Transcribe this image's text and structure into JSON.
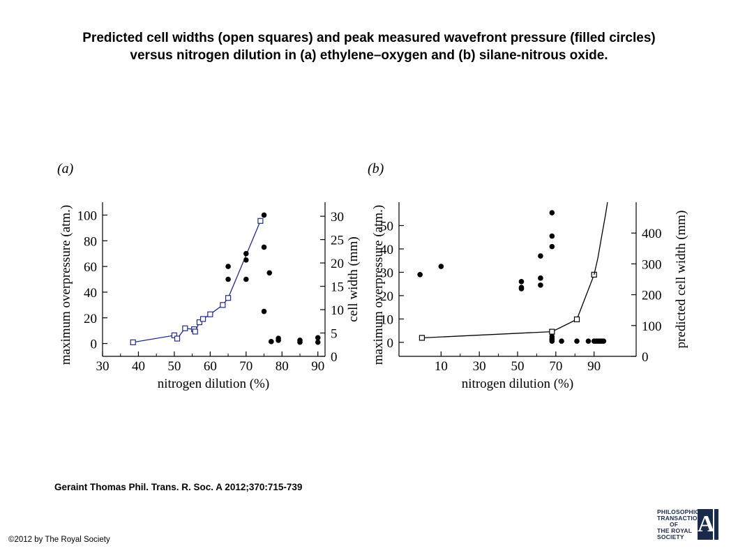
{
  "title_line1": "Predicted cell widths (open squares) and peak measured wavefront pressure (filled circles)",
  "title_line2": "versus nitrogen dilution in (a) ethylene–oxygen and (b) silane-nitrous oxide.",
  "citation": "Geraint Thomas Phil. Trans. R. Soc. A 2012;370:715-739",
  "copyright": "©2012 by The Royal Society",
  "logo": {
    "line1": "PHILOSOPHICAL",
    "line2": "TRANSACTIONS",
    "line3": "OF",
    "line4": "THE ROYAL",
    "line5": "SOCIETY",
    "letter": "A"
  },
  "chart_data": [
    {
      "type": "scatter",
      "panel_label": "(a)",
      "xlabel": "nitrogen dilution (%)",
      "ylabel_left": "maximum overpressure (atm.)",
      "ylabel_right": "cell width (mm)",
      "xlim": [
        30,
        92
      ],
      "ylim_left": [
        -10,
        110
      ],
      "ylim_right": [
        0,
        33
      ],
      "x_ticks": [
        30,
        40,
        50,
        60,
        70,
        80,
        90
      ],
      "y_left_ticks": [
        0,
        20,
        40,
        60,
        80,
        100
      ],
      "y_right_ticks": [
        0,
        5,
        10,
        15,
        20,
        25,
        30
      ],
      "line_color": "#1f2a8c",
      "series": [
        {
          "name": "predicted cell width (open squares)",
          "axis": "right",
          "marker": "open-square",
          "connected": true,
          "x": [
            38.5,
            50,
            50.8,
            53,
            55.5,
            55.8,
            57,
            58,
            60,
            63.5,
            65,
            74
          ],
          "y": [
            3,
            4.5,
            3.8,
            6,
            5.8,
            5.3,
            7.3,
            8,
            9,
            11,
            12.5,
            29
          ]
        },
        {
          "name": "peak measured wavefront pressure (filled circles)",
          "axis": "left",
          "marker": "filled-circle",
          "connected": false,
          "x": [
            65,
            65,
            70,
            70,
            70,
            75,
            75,
            75,
            76.5,
            77,
            79,
            79,
            85,
            85,
            90,
            90
          ],
          "y": [
            60,
            50,
            70,
            65,
            50,
            100,
            75,
            25,
            55,
            1.5,
            4,
            2.5,
            2.5,
            1,
            4.5,
            1
          ]
        }
      ]
    },
    {
      "type": "scatter",
      "panel_label": "(b)",
      "xlabel": "nitrogen dilution (%)",
      "ylabel_left": "maximum overpressure (atm.)",
      "ylabel_right": "predicted cell width (mm)",
      "xlim": [
        -12,
        112
      ],
      "ylim_left": [
        -6,
        60
      ],
      "ylim_right": [
        0,
        500
      ],
      "x_ticks": [
        10,
        30,
        50,
        70,
        90
      ],
      "y_left_ticks": [
        0,
        10,
        20,
        30,
        40,
        50
      ],
      "y_right_ticks": [
        0,
        100,
        200,
        300,
        400
      ],
      "line_color": "#000000",
      "series": [
        {
          "name": "predicted cell width (open squares)",
          "axis": "right",
          "marker": "open-square",
          "connected": true,
          "x": [
            0,
            68,
            81,
            90
          ],
          "y": [
            60,
            80,
            120,
            265
          ]
        },
        {
          "name": "predicted cell width (asymptote)",
          "axis": "right",
          "marker": "none",
          "connected": true,
          "x": [
            90,
            92,
            94,
            96,
            97
          ],
          "y": [
            265,
            320,
            390,
            460,
            500
          ]
        },
        {
          "name": "peak measured wavefront pressure (filled circles)",
          "axis": "left",
          "marker": "filled-circle",
          "connected": false,
          "x": [
            -1,
            10,
            52,
            52,
            52,
            62,
            62,
            62,
            68,
            68,
            68,
            68,
            68,
            68,
            68,
            73,
            81,
            87,
            90,
            91,
            92,
            93,
            94,
            95
          ],
          "y": [
            29,
            32.5,
            26,
            23.5,
            23,
            37,
            27.5,
            24.5,
            55.5,
            45.5,
            41,
            2.5,
            1.5,
            1,
            0.5,
            0.5,
            0.5,
            0.5,
            0.5,
            0.5,
            0.5,
            0.5,
            0.5,
            0.5
          ]
        }
      ]
    }
  ]
}
